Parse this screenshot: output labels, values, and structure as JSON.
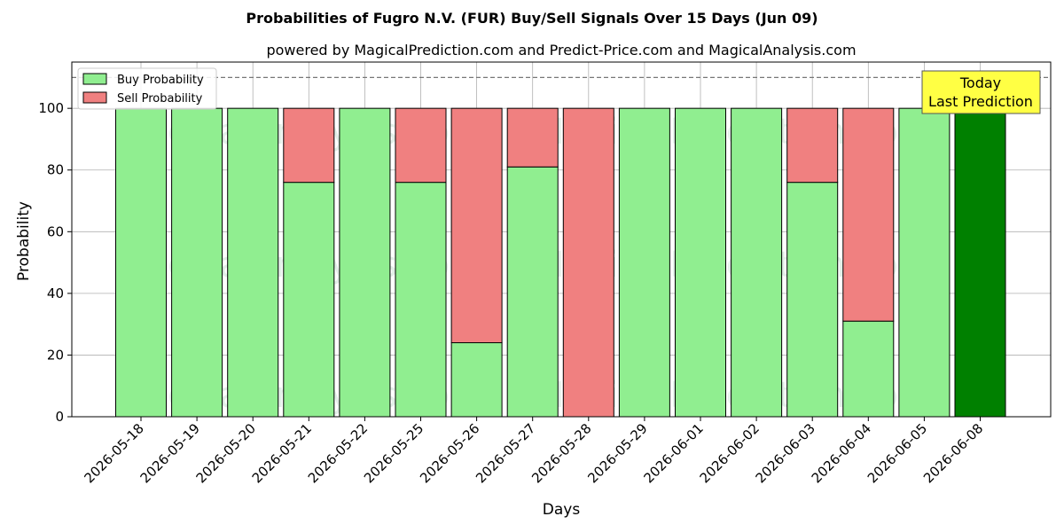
{
  "chart_data": {
    "type": "bar",
    "stacked": true,
    "title": "Probabilities of Fugro N.V. (FUR) Buy/Sell Signals Over 15 Days (Jun 09)",
    "subtitle": "powered by MagicalPrediction.com and Predict-Price.com and MagicalAnalysis.com",
    "xlabel": "Days",
    "ylabel": "Probability",
    "ylim": [
      0,
      115
    ],
    "yticks": [
      0,
      20,
      40,
      60,
      80,
      100
    ],
    "reference_line": 110,
    "grid": true,
    "legend_position": "top-left",
    "categories": [
      "2026-05-18",
      "2026-05-19",
      "2026-05-20",
      "2026-05-21",
      "2026-05-22",
      "2026-05-25",
      "2026-05-26",
      "2026-05-27",
      "2026-05-28",
      "2026-05-29",
      "2026-06-01",
      "2026-06-02",
      "2026-06-03",
      "2026-06-04",
      "2026-06-05",
      "2026-06-08"
    ],
    "series": [
      {
        "name": "Buy Probability",
        "color": "#90ee90",
        "values": [
          100,
          100,
          100,
          76,
          100,
          76,
          24,
          81,
          0,
          100,
          100,
          100,
          76,
          31,
          100,
          100
        ]
      },
      {
        "name": "Sell Probability",
        "color": "#f08080",
        "values": [
          0,
          0,
          0,
          24,
          0,
          24,
          76,
          19,
          100,
          0,
          0,
          0,
          24,
          69,
          0,
          0
        ]
      }
    ],
    "highlight": {
      "index": 15,
      "color": "#008000",
      "label_lines": [
        "Today",
        "Last Prediction"
      ],
      "box_color": "#ffff44"
    },
    "watermarks": [
      "MagicalAnalysis.com",
      "MagicalPrediction.com"
    ]
  }
}
